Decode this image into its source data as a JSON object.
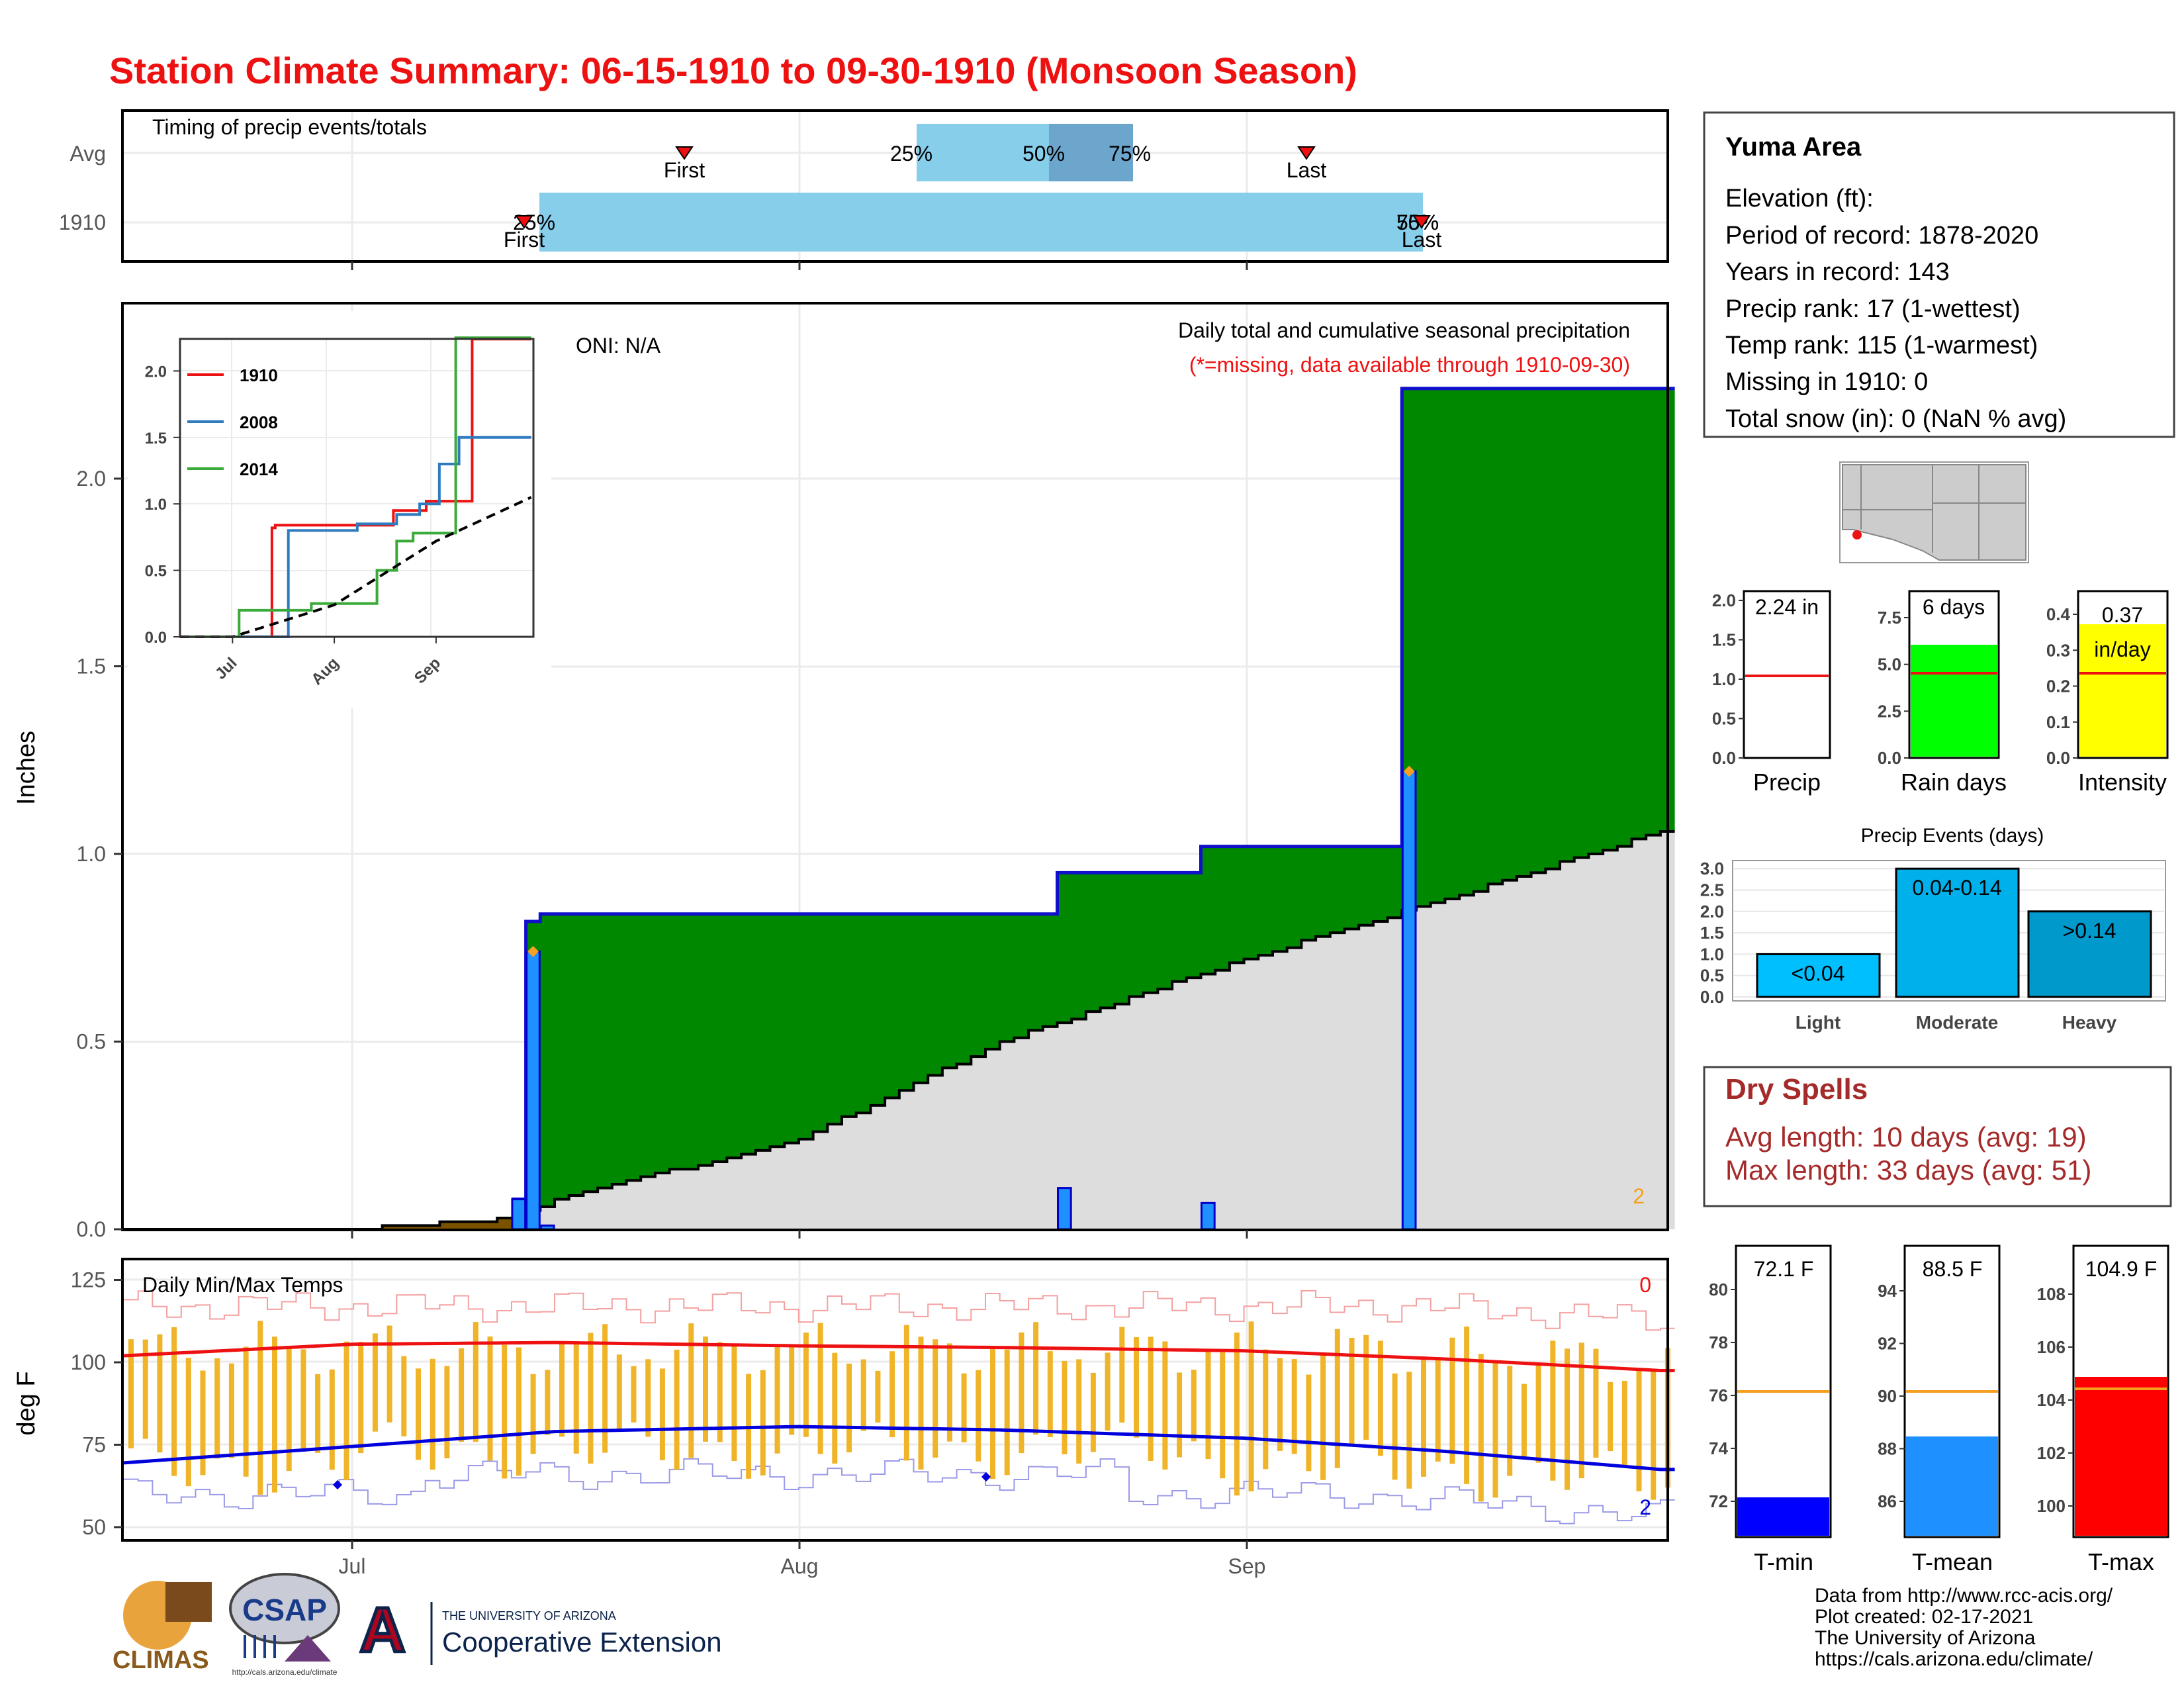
{
  "title": "Station Climate Summary: 06-15-1910 to 09-30-1910 (Monsoon Season)",
  "colors": {
    "title_red": "#ee1111",
    "precip_green": "#008800",
    "avg_gray": "#dddddd",
    "bar_blue": "#1e90ff",
    "quartile_light": "#87ceeb",
    "quartile_dark": "#6ca6cd",
    "temp_bar": "#f0b429",
    "max_line": "#ee1111",
    "min_line": "#0000dd",
    "rain_green": "#00ff00",
    "intensity_yellow": "#ffff00",
    "dry_spell_red": "#a52a2a"
  },
  "timing_panel": {
    "label": "Timing of precip events/totals",
    "rows": [
      "Avg",
      "1910"
    ],
    "avg": {
      "first_label": "First",
      "last_label": "Last",
      "q25": "25%",
      "q50": "50%",
      "q75": "75%"
    },
    "y1910": {
      "first_label": "First",
      "last_label": "Last",
      "q25": "25%",
      "q50": "50%",
      "q75": "75%"
    }
  },
  "main_panel": {
    "ylabel": "Inches",
    "yticks": [
      "0.0",
      "0.5",
      "1.0",
      "1.5",
      "2.0"
    ],
    "oni": "ONI: N/A",
    "caption": "Daily total and cumulative seasonal precipitation",
    "missing_note": "(*=missing, data available through 1910-09-30)",
    "corner_count": "2"
  },
  "inset": {
    "yticks": [
      "0.0",
      "0.5",
      "1.0",
      "1.5",
      "2.0"
    ],
    "xticks": [
      "Jul",
      "Aug",
      "Sep"
    ],
    "legend": [
      "1910",
      "2008",
      "2014"
    ]
  },
  "temp_panel": {
    "ylabel": "deg F",
    "label": "Daily Min/Max Temps",
    "yticks": [
      "125",
      "100",
      "75",
      "50"
    ],
    "xticks": [
      "Jul",
      "Aug",
      "Sep"
    ],
    "corner_top": "0",
    "corner_bottom": "2"
  },
  "info_box": {
    "title": "Yuma Area",
    "lines": [
      "Elevation (ft):",
      "Period of record: 1878-2020",
      "Years in record: 143",
      "Precip rank: 17 (1-wettest)",
      "Temp rank: 115 (1-warmest)",
      "Missing in 1910: 0",
      "Total snow (in): 0 (NaN % avg)"
    ]
  },
  "mini_bars": {
    "precip": {
      "label": "Precip",
      "value_label": "2.24 in",
      "yticks": [
        "0.0",
        "0.5",
        "1.0",
        "1.5",
        "2.0"
      ]
    },
    "rain_days": {
      "label": "Rain days",
      "value_label": "6 days",
      "yticks": [
        "0.0",
        "2.5",
        "5.0",
        "7.5"
      ]
    },
    "intensity": {
      "label": "Intensity",
      "value_label": "0.37",
      "unit_label": "in/day",
      "yticks": [
        "0.0",
        "0.1",
        "0.2",
        "0.3",
        "0.4"
      ]
    }
  },
  "precip_events": {
    "title": "Precip Events (days)",
    "yticks": [
      "0.0",
      "0.5",
      "1.0",
      "1.5",
      "2.0",
      "2.5",
      "3.0"
    ],
    "categories": [
      "Light",
      "Moderate",
      "Heavy"
    ],
    "bar_labels": [
      "<0.04",
      "0.04-0.14",
      ">0.14"
    ]
  },
  "dry_spells": {
    "title": "Dry Spells",
    "avg_length": "Avg length: 10 days (avg: 19)",
    "max_length": "Max length: 33 days (avg: 51)"
  },
  "temp_bars": {
    "tmin": {
      "label": "T-min",
      "value_label": "72.1 F",
      "yticks": [
        "72",
        "74",
        "76",
        "78",
        "80"
      ]
    },
    "tmean": {
      "label": "T-mean",
      "value_label": "88.5 F",
      "yticks": [
        "86",
        "88",
        "90",
        "92",
        "94"
      ]
    },
    "tmax": {
      "label": "T-max",
      "value_label": "104.9 F",
      "yticks": [
        "100",
        "102",
        "104",
        "106",
        "108"
      ]
    }
  },
  "footer": {
    "lines": [
      "Data from http://www.rcc-acis.org/",
      "Plot created: 02-17-2021",
      "The University of Arizona",
      "https://cals.arizona.edu/climate/"
    ]
  },
  "logos": {
    "climas": "CLIMAS",
    "csap": "CSAP",
    "csap_url": "http://cals.arizona.edu/climate",
    "ua_letter": "A",
    "ua_line1": "THE UNIVERSITY OF ARIZONA",
    "ua_line2": "Cooperative Extension"
  },
  "chart_data": [
    {
      "type": "area",
      "title": "Daily total and cumulative seasonal precipitation",
      "ylabel": "Inches",
      "ylim": [
        0,
        2.4
      ],
      "x_range": [
        "1910-06-15",
        "1910-09-30"
      ],
      "daily_precip_bars": [
        {
          "date": "1910-07-12",
          "value": 0.08
        },
        {
          "date": "1910-07-13",
          "value": 0.74
        },
        {
          "date": "1910-07-14",
          "value": 0.01
        },
        {
          "date": "1910-08-19",
          "value": 0.11
        },
        {
          "date": "1910-08-29",
          "value": 0.07
        },
        {
          "date": "1910-09-12",
          "value": 1.22
        }
      ],
      "cumulative_1910": [
        {
          "date": "1910-07-12",
          "value": 0.08
        },
        {
          "date": "1910-07-13",
          "value": 0.82
        },
        {
          "date": "1910-07-14",
          "value": 0.84
        },
        {
          "date": "1910-08-19",
          "value": 0.95
        },
        {
          "date": "1910-08-29",
          "value": 1.02
        },
        {
          "date": "1910-09-12",
          "value": 2.24
        }
      ],
      "average_cumulative": [
        {
          "date": "1910-06-15",
          "value": 0.0
        },
        {
          "date": "1910-07-01",
          "value": 0.0
        },
        {
          "date": "1910-07-12",
          "value": 0.03
        },
        {
          "date": "1910-07-15",
          "value": 0.08
        },
        {
          "date": "1910-08-01",
          "value": 0.24
        },
        {
          "date": "1910-08-15",
          "value": 0.5
        },
        {
          "date": "1910-09-01",
          "value": 0.72
        },
        {
          "date": "1910-09-15",
          "value": 0.88
        },
        {
          "date": "1910-09-30",
          "value": 1.06
        }
      ]
    },
    {
      "type": "line",
      "title": "",
      "ylim": [
        0,
        2.4
      ],
      "series": [
        {
          "name": "1910",
          "color": "#ee1111",
          "points": [
            {
              "date": "1910-06-15",
              "value": 0.0
            },
            {
              "date": "1910-07-12",
              "value": 0.0
            },
            {
              "date": "1910-07-13",
              "value": 0.82
            },
            {
              "date": "1910-07-14",
              "value": 0.84
            },
            {
              "date": "1910-08-19",
              "value": 0.95
            },
            {
              "date": "1910-08-29",
              "value": 1.02
            },
            {
              "date": "1910-09-12",
              "value": 2.24
            },
            {
              "date": "1910-09-30",
              "value": 2.24
            }
          ]
        },
        {
          "name": "2008",
          "color": "#2f7bbf",
          "points": [
            {
              "date": "1910-06-15",
              "value": 0.0
            },
            {
              "date": "1910-07-17",
              "value": 0.0
            },
            {
              "date": "1910-07-18",
              "value": 0.8
            },
            {
              "date": "1910-08-08",
              "value": 0.85
            },
            {
              "date": "1910-08-20",
              "value": 0.92
            },
            {
              "date": "1910-08-27",
              "value": 1.0
            },
            {
              "date": "1910-09-02",
              "value": 1.3
            },
            {
              "date": "1910-09-08",
              "value": 1.5
            },
            {
              "date": "1910-09-30",
              "value": 1.5
            }
          ]
        },
        {
          "name": "2014",
          "color": "#3aaa3a",
          "points": [
            {
              "date": "1910-06-15",
              "value": 0.0
            },
            {
              "date": "1910-07-02",
              "value": 0.0
            },
            {
              "date": "1910-07-03",
              "value": 0.2
            },
            {
              "date": "1910-07-25",
              "value": 0.25
            },
            {
              "date": "1910-08-14",
              "value": 0.5
            },
            {
              "date": "1910-08-20",
              "value": 0.72
            },
            {
              "date": "1910-08-25",
              "value": 0.78
            },
            {
              "date": "1910-09-07",
              "value": 2.25
            },
            {
              "date": "1910-09-30",
              "value": 2.25
            }
          ]
        },
        {
          "name": "",
          "color": "#000000",
          "dashed": true,
          "points": [
            {
              "date": "1910-06-15",
              "value": 0.0
            },
            {
              "date": "1910-07-01",
              "value": 0.0
            },
            {
              "date": "1910-08-01",
              "value": 0.24
            },
            {
              "date": "1910-09-01",
              "value": 0.72
            },
            {
              "date": "1910-09-30",
              "value": 1.05
            }
          ]
        }
      ]
    },
    {
      "type": "bar",
      "title": "Precip Events (days)",
      "categories": [
        "Light",
        "Moderate",
        "Heavy"
      ],
      "values": [
        1,
        3,
        2
      ],
      "ylim": [
        0,
        3
      ]
    },
    {
      "type": "bar",
      "title": "",
      "categories": [
        "Precip",
        "Rain days",
        "Intensity"
      ],
      "values": [
        2.24,
        6,
        0.37
      ],
      "averages": [
        1.05,
        4.5,
        0.24
      ]
    },
    {
      "type": "bar",
      "title": "",
      "categories": [
        "T-min",
        "T-mean",
        "T-max"
      ],
      "values": [
        72.1,
        88.5,
        104.9
      ],
      "averages": [
        76.1,
        90.2,
        104.4
      ]
    },
    {
      "type": "line",
      "title": "Daily Min/Max Temps",
      "ylabel": "deg F",
      "ylim": [
        45,
        128
      ],
      "series": [
        {
          "name": "",
          "color": "#ee1111",
          "points": [
            {
              "date": "1910-06-15",
              "value": 102
            },
            {
              "date": "1910-07-01",
              "value": 105.5
            },
            {
              "date": "1910-07-15",
              "value": 106
            },
            {
              "date": "1910-08-01",
              "value": 105
            },
            {
              "date": "1910-08-15",
              "value": 104.5
            },
            {
              "date": "1910-09-01",
              "value": 103.5
            },
            {
              "date": "1910-09-15",
              "value": 101
            },
            {
              "date": "1910-09-30",
              "value": 97.5
            }
          ]
        },
        {
          "name": "",
          "color": "#0000dd",
          "points": [
            {
              "date": "1910-06-15",
              "value": 69.5
            },
            {
              "date": "1910-07-01",
              "value": 74.5
            },
            {
              "date": "1910-07-15",
              "value": 79
            },
            {
              "date": "1910-08-01",
              "value": 80.5
            },
            {
              "date": "1910-08-15",
              "value": 79.5
            },
            {
              "date": "1910-09-01",
              "value": 77
            },
            {
              "date": "1910-09-15",
              "value": 73
            },
            {
              "date": "1910-09-30",
              "value": 67.5
            }
          ]
        }
      ],
      "record_high_approx": 120,
      "record_low_approx": 58
    }
  ]
}
